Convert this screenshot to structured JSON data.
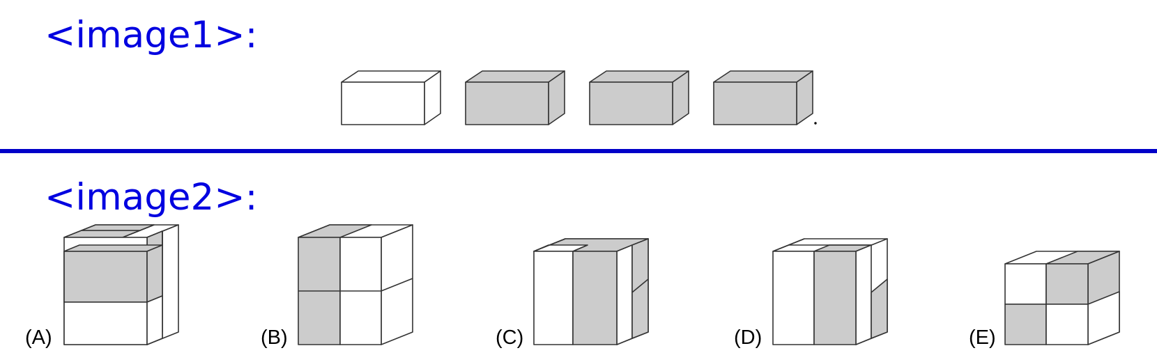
{
  "image1": {
    "label": "<image1>:"
  },
  "image2": {
    "label": "<image2>:",
    "options": [
      {
        "label": "(A)"
      },
      {
        "label": "(B)"
      },
      {
        "label": "(C)"
      },
      {
        "label": "(D)"
      },
      {
        "label": "(E)"
      }
    ]
  },
  "colors": {
    "label": "#0000e0",
    "separator": "#0000c8",
    "shaded": "#cccccc",
    "white": "#ffffff",
    "stroke": "#333333"
  }
}
